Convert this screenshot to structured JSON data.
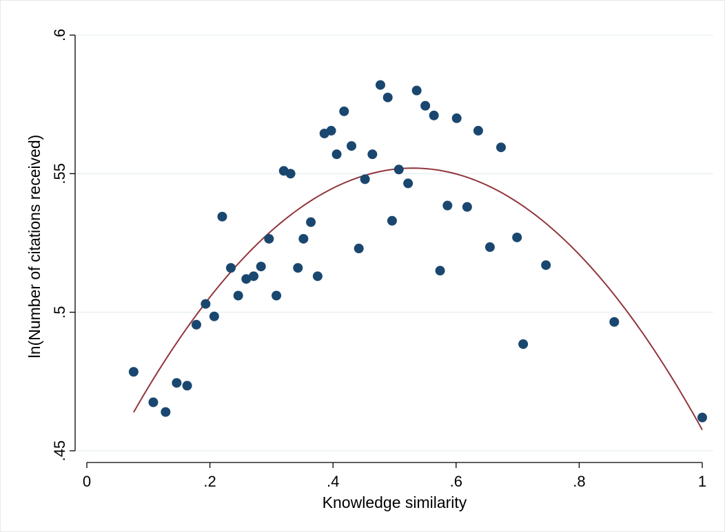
{
  "chart_data": {
    "type": "scatter",
    "xlabel": "Knowledge similarity",
    "ylabel": "ln(Number of citations received)",
    "xlim": [
      0,
      1
    ],
    "ylim": [
      0.45,
      0.6
    ],
    "grid": "horizontal",
    "legend": "none",
    "x_ticks": [
      {
        "value": 0,
        "label": "0"
      },
      {
        "value": 0.2,
        "label": ".2"
      },
      {
        "value": 0.4,
        "label": ".4"
      },
      {
        "value": 0.6,
        "label": ".6"
      },
      {
        "value": 0.8,
        "label": ".8"
      },
      {
        "value": 1,
        "label": "1"
      }
    ],
    "y_ticks": [
      {
        "value": 0.45,
        "label": ".45"
      },
      {
        "value": 0.5,
        "label": ".5"
      },
      {
        "value": 0.55,
        "label": ".55"
      },
      {
        "value": 0.6,
        "label": ".6"
      }
    ],
    "series": [
      {
        "type": "scatter",
        "color": "#1a476f",
        "points": [
          [
            0.076,
            0.4785
          ],
          [
            0.108,
            0.4675
          ],
          [
            0.128,
            0.464
          ],
          [
            0.146,
            0.4745
          ],
          [
            0.163,
            0.4735
          ],
          [
            0.178,
            0.4955
          ],
          [
            0.193,
            0.503
          ],
          [
            0.207,
            0.4985
          ],
          [
            0.22,
            0.5345
          ],
          [
            0.234,
            0.516
          ],
          [
            0.246,
            0.506
          ],
          [
            0.259,
            0.512
          ],
          [
            0.271,
            0.513
          ],
          [
            0.283,
            0.5165
          ],
          [
            0.296,
            0.5265
          ],
          [
            0.308,
            0.506
          ],
          [
            0.32,
            0.551
          ],
          [
            0.331,
            0.55
          ],
          [
            0.343,
            0.516
          ],
          [
            0.352,
            0.5265
          ],
          [
            0.364,
            0.5325
          ],
          [
            0.375,
            0.513
          ],
          [
            0.386,
            0.5645
          ],
          [
            0.397,
            0.5655
          ],
          [
            0.406,
            0.557
          ],
          [
            0.418,
            0.5725
          ],
          [
            0.43,
            0.56
          ],
          [
            0.442,
            0.523
          ],
          [
            0.452,
            0.548
          ],
          [
            0.464,
            0.557
          ],
          [
            0.477,
            0.582
          ],
          [
            0.489,
            0.5775
          ],
          [
            0.496,
            0.533
          ],
          [
            0.507,
            0.5515
          ],
          [
            0.522,
            0.5465
          ],
          [
            0.536,
            0.58
          ],
          [
            0.55,
            0.5745
          ],
          [
            0.564,
            0.571
          ],
          [
            0.574,
            0.515
          ],
          [
            0.586,
            0.5385
          ],
          [
            0.601,
            0.57
          ],
          [
            0.618,
            0.538
          ],
          [
            0.636,
            0.5655
          ],
          [
            0.655,
            0.5235
          ],
          [
            0.673,
            0.5595
          ],
          [
            0.699,
            0.527
          ],
          [
            0.709,
            0.4885
          ],
          [
            0.746,
            0.517
          ],
          [
            0.857,
            0.4965
          ],
          [
            1.0,
            0.462
          ]
        ]
      },
      {
        "type": "line",
        "color": "#90353b",
        "fit": "quadratic",
        "x_range": [
          0.076,
          1.0
        ],
        "peak": [
          0.53,
          0.552
        ],
        "curvature": -0.4275
      }
    ]
  }
}
